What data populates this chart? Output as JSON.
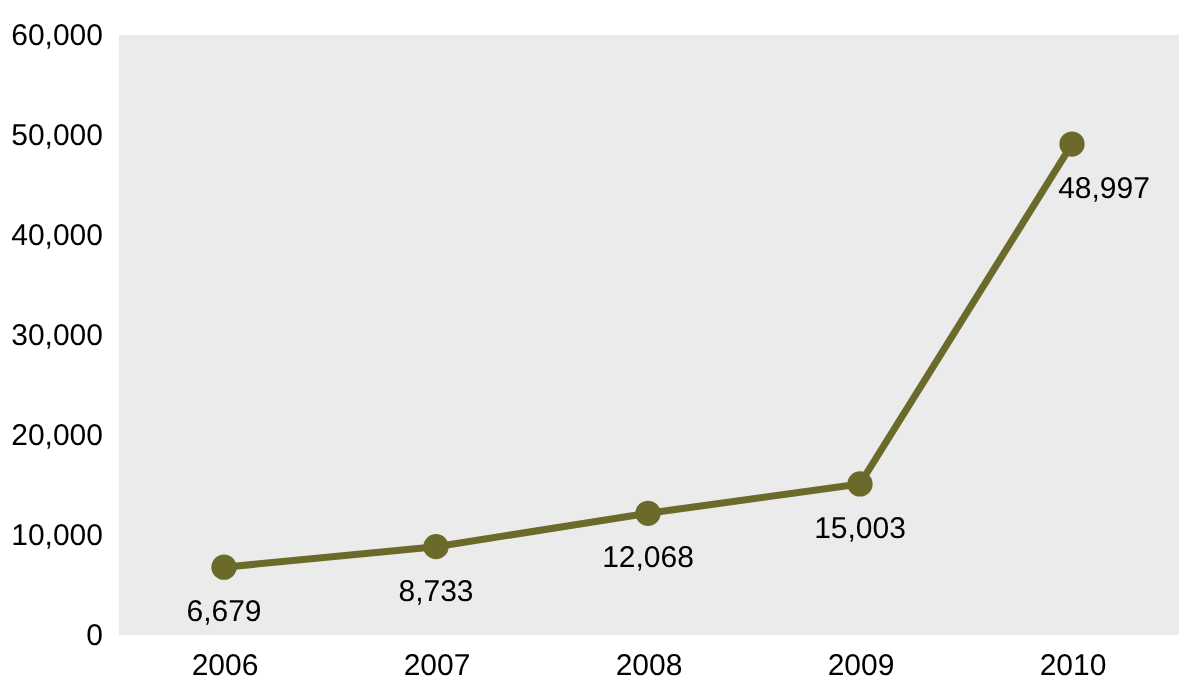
{
  "chart_data": {
    "type": "line",
    "categories": [
      "2006",
      "2007",
      "2008",
      "2009",
      "2010"
    ],
    "series": [
      {
        "color": "#6b6a2a",
        "values": [
          6679,
          8733,
          12068,
          15003,
          48997
        ],
        "value_labels": [
          "6,679",
          "8,733",
          "12,068",
          "15,003",
          "48,997"
        ]
      }
    ],
    "ylim": [
      0,
      60000
    ],
    "yticks": [
      0,
      {
        "value": 10000,
        "label": "10,000"
      },
      {
        "value": 20000,
        "label": "20,000"
      },
      {
        "value": 30000,
        "label": "30,000"
      },
      {
        "value": 40000,
        "label": "40,000"
      },
      {
        "value": 50000,
        "label": "50,000"
      },
      {
        "value": 60000,
        "label": "60,000"
      }
    ],
    "grid": false,
    "legend": false,
    "marker": "circle",
    "line_style": "solid"
  }
}
